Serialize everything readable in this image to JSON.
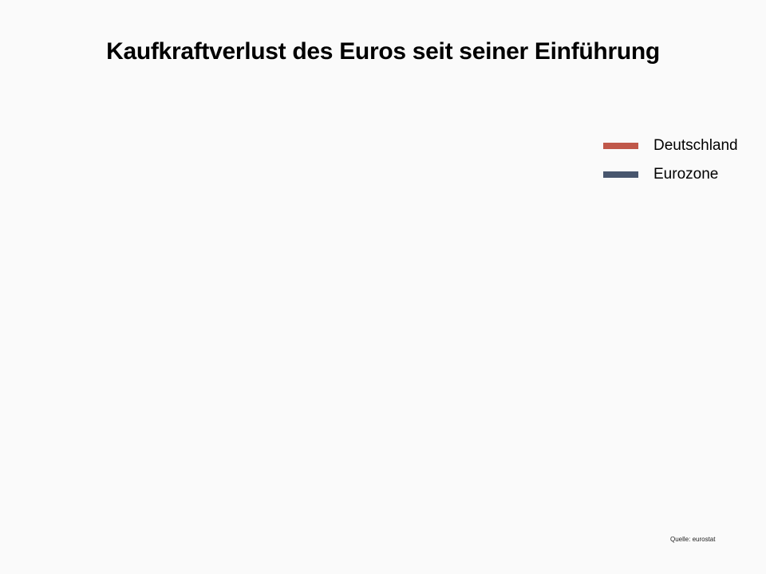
{
  "chart_data": {
    "type": "line",
    "title": "Kaufkraftverlust des Euros seit seiner Einführung",
    "xlabel": "",
    "ylabel": "",
    "legend_position": "top-right",
    "grid": false,
    "series": [
      {
        "name": "Deutschland",
        "color": "#c0584a",
        "values": []
      },
      {
        "name": "Eurozone",
        "color": "#48566e",
        "values": []
      }
    ],
    "source": "Quelle: eurostat"
  }
}
